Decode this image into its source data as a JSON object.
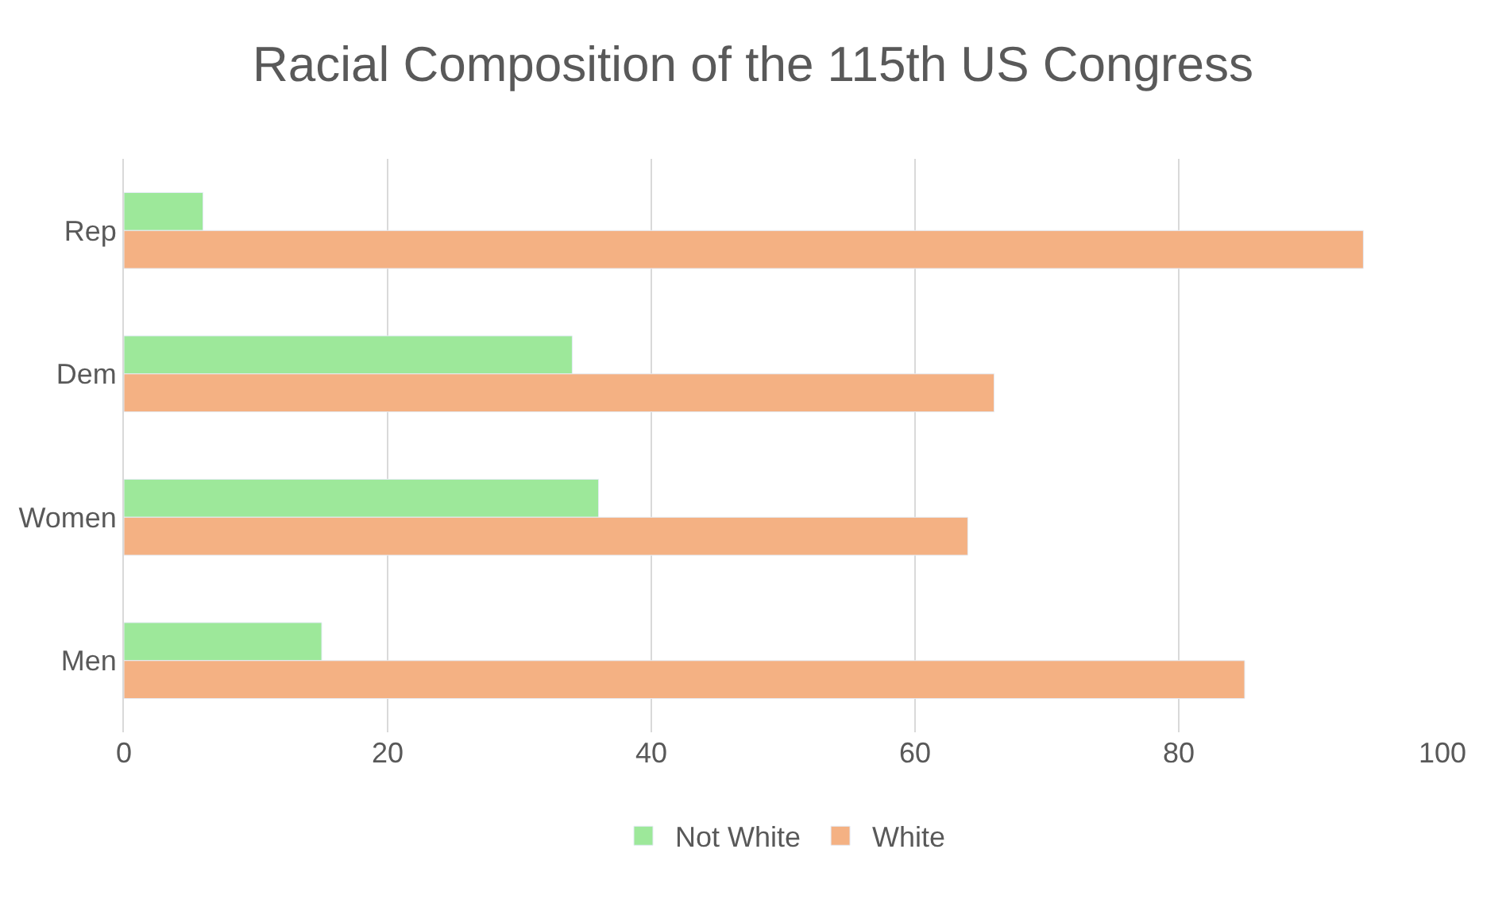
{
  "chart_data": {
    "type": "bar",
    "orientation": "horizontal",
    "title": "Racial Composition of the 115th US Congress",
    "categories": [
      "Rep",
      "Dem",
      "Women",
      "Men"
    ],
    "series": [
      {
        "name": "Not White",
        "color": "#9de89a",
        "values": [
          6,
          34,
          36,
          15
        ]
      },
      {
        "name": "White",
        "color": "#f4b183",
        "values": [
          94,
          66,
          64,
          85
        ]
      }
    ],
    "xlim": [
      0,
      100
    ],
    "xticks": [
      0,
      20,
      40,
      60,
      80,
      100
    ],
    "grid": "x",
    "legend": "bottom"
  }
}
